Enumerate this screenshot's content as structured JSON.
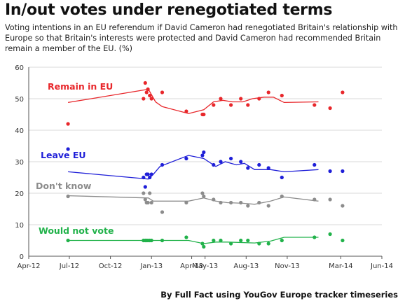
{
  "header": {
    "title": "In/out votes under renegotiated terms",
    "subtitle": "Voting intentions in an EU referendum if David Cameron had renegotiated Britain's relationship with Europe so that Britain's interests were protected and David Cameron had recommended Britain remain a member of the EU. (%)"
  },
  "footer": {
    "credit": "By Full Fact using YouGov Europe tracker timeseries"
  },
  "colors": {
    "remain": "#e8272b",
    "leave": "#1f1fd8",
    "dont_know": "#8c8c8c",
    "would_not_vote": "#21b24a",
    "grid": "#d9d9d9",
    "axis": "#555555"
  },
  "chart_data": {
    "type": "scatter",
    "title": "In/out votes under renegotiated terms",
    "xlabel": "",
    "ylabel": "",
    "xlim": [
      "2012-04-01",
      "2014-06-01"
    ],
    "ylim": [
      0,
      60
    ],
    "yticks": [
      0,
      10,
      20,
      30,
      40,
      50,
      60
    ],
    "xticks": [
      {
        "date": "2012-04-01",
        "label": "Apr-12"
      },
      {
        "date": "2012-07-01",
        "label": "Jul-12"
      },
      {
        "date": "2012-10-01",
        "label": "Oct-12"
      },
      {
        "date": "2013-01-01",
        "label": "Jan-13"
      },
      {
        "date": "2013-04-01",
        "label": "Apr-13"
      },
      {
        "date": "2013-05-01",
        "label": "May-13"
      },
      {
        "date": "2013-08-01",
        "label": "Aug-13"
      },
      {
        "date": "2013-11-01",
        "label": "Nov-13"
      },
      {
        "date": "2014-03-01",
        "label": "Mar-14"
      },
      {
        "date": "2014-06-01",
        "label": "Jun-14"
      }
    ],
    "grid": "horizontal",
    "series": [
      {
        "name": "Remain in EU",
        "color": "#e8272b",
        "points": [
          [
            "2012-06-28",
            42
          ],
          [
            "2012-12-14",
            50
          ],
          [
            "2012-12-18",
            55
          ],
          [
            "2012-12-21",
            52
          ],
          [
            "2012-12-24",
            53
          ],
          [
            "2012-12-28",
            51
          ],
          [
            "2013-01-01",
            50
          ],
          [
            "2013-01-25",
            52
          ],
          [
            "2013-03-20",
            46
          ],
          [
            "2013-04-25",
            45
          ],
          [
            "2013-04-28",
            45
          ],
          [
            "2013-05-20",
            48
          ],
          [
            "2013-06-05",
            50
          ],
          [
            "2013-06-28",
            48
          ],
          [
            "2013-07-20",
            50
          ],
          [
            "2013-08-05",
            48
          ],
          [
            "2013-08-30",
            50
          ],
          [
            "2013-09-20",
            52
          ],
          [
            "2013-10-20",
            51
          ],
          [
            "2014-01-01",
            48
          ],
          [
            "2014-02-05",
            47
          ],
          [
            "2014-03-05",
            52
          ]
        ],
        "trend": [
          [
            "2012-06-28",
            48.8
          ],
          [
            "2012-12-25",
            53
          ],
          [
            "2013-01-10",
            49
          ],
          [
            "2013-01-25",
            47.5
          ],
          [
            "2013-03-25",
            45.3
          ],
          [
            "2013-04-28",
            46.5
          ],
          [
            "2013-05-20",
            49
          ],
          [
            "2013-06-10",
            49.5
          ],
          [
            "2013-07-01",
            49
          ],
          [
            "2013-07-25",
            49
          ],
          [
            "2013-08-15",
            50
          ],
          [
            "2013-09-10",
            50.5
          ],
          [
            "2013-10-01",
            50.5
          ],
          [
            "2013-10-25",
            48.8
          ],
          [
            "2014-01-10",
            49
          ]
        ]
      },
      {
        "name": "Leave EU",
        "color": "#1f1fd8",
        "points": [
          [
            "2012-06-28",
            34
          ],
          [
            "2012-12-14",
            25
          ],
          [
            "2012-12-18",
            22
          ],
          [
            "2012-12-21",
            26
          ],
          [
            "2012-12-24",
            26
          ],
          [
            "2012-12-28",
            25
          ],
          [
            "2013-01-01",
            26
          ],
          [
            "2013-01-25",
            29
          ],
          [
            "2013-03-20",
            31
          ],
          [
            "2013-04-25",
            32
          ],
          [
            "2013-04-28",
            33
          ],
          [
            "2013-05-20",
            29
          ],
          [
            "2013-06-05",
            30
          ],
          [
            "2013-06-28",
            31
          ],
          [
            "2013-07-20",
            30
          ],
          [
            "2013-08-05",
            28
          ],
          [
            "2013-08-30",
            29
          ],
          [
            "2013-09-20",
            28
          ],
          [
            "2013-10-20",
            25
          ],
          [
            "2014-01-01",
            29
          ],
          [
            "2014-02-05",
            27
          ],
          [
            "2014-03-05",
            27
          ]
        ],
        "trend": [
          [
            "2012-06-28",
            26.8
          ],
          [
            "2012-12-25",
            24.5
          ],
          [
            "2013-01-05",
            26
          ],
          [
            "2013-01-20",
            28.5
          ],
          [
            "2013-03-25",
            32
          ],
          [
            "2013-04-28",
            31
          ],
          [
            "2013-05-25",
            28.5
          ],
          [
            "2013-06-15",
            30
          ],
          [
            "2013-07-10",
            29
          ],
          [
            "2013-07-28",
            29.5
          ],
          [
            "2013-08-20",
            27.5
          ],
          [
            "2013-09-25",
            27.5
          ],
          [
            "2013-10-25",
            26.8
          ],
          [
            "2014-01-10",
            27.5
          ]
        ]
      },
      {
        "name": "Don't know",
        "color": "#8c8c8c",
        "points": [
          [
            "2012-06-28",
            19
          ],
          [
            "2012-12-14",
            20
          ],
          [
            "2012-12-18",
            18
          ],
          [
            "2012-12-21",
            17
          ],
          [
            "2012-12-24",
            17
          ],
          [
            "2012-12-28",
            20
          ],
          [
            "2013-01-01",
            17
          ],
          [
            "2013-01-25",
            14
          ],
          [
            "2013-03-20",
            17
          ],
          [
            "2013-04-25",
            20
          ],
          [
            "2013-04-28",
            19
          ],
          [
            "2013-05-20",
            18
          ],
          [
            "2013-06-05",
            17
          ],
          [
            "2013-06-28",
            17
          ],
          [
            "2013-07-20",
            17
          ],
          [
            "2013-08-05",
            16
          ],
          [
            "2013-08-30",
            17
          ],
          [
            "2013-09-20",
            16
          ],
          [
            "2013-10-20",
            19
          ],
          [
            "2014-01-01",
            18
          ],
          [
            "2014-02-05",
            18
          ],
          [
            "2014-03-05",
            16
          ]
        ],
        "trend": [
          [
            "2012-06-28",
            19.2
          ],
          [
            "2012-12-25",
            18.5
          ],
          [
            "2013-01-05",
            17.5
          ],
          [
            "2013-03-25",
            17.5
          ],
          [
            "2013-04-28",
            18.5
          ],
          [
            "2013-05-25",
            17.5
          ],
          [
            "2013-06-20",
            17
          ],
          [
            "2013-07-25",
            16.8
          ],
          [
            "2013-08-20",
            16.5
          ],
          [
            "2013-09-25",
            17.5
          ],
          [
            "2013-10-25",
            18.8
          ],
          [
            "2014-01-10",
            17.5
          ]
        ]
      },
      {
        "name": "Would not vote",
        "color": "#21b24a",
        "points": [
          [
            "2012-06-28",
            5
          ],
          [
            "2012-12-14",
            5
          ],
          [
            "2012-12-18",
            5
          ],
          [
            "2012-12-21",
            5
          ],
          [
            "2012-12-24",
            5
          ],
          [
            "2012-12-28",
            5
          ],
          [
            "2013-01-01",
            5
          ],
          [
            "2013-01-25",
            5
          ],
          [
            "2013-03-20",
            6
          ],
          [
            "2013-04-25",
            4
          ],
          [
            "2013-04-28",
            3
          ],
          [
            "2013-05-20",
            5
          ],
          [
            "2013-06-05",
            5
          ],
          [
            "2013-06-28",
            4
          ],
          [
            "2013-07-20",
            5
          ],
          [
            "2013-08-05",
            5
          ],
          [
            "2013-08-30",
            4
          ],
          [
            "2013-09-20",
            4
          ],
          [
            "2013-10-20",
            5
          ],
          [
            "2014-01-01",
            6
          ],
          [
            "2014-02-05",
            7
          ],
          [
            "2014-03-05",
            5
          ]
        ],
        "trend": [
          [
            "2012-06-28",
            5
          ],
          [
            "2012-12-25",
            5
          ],
          [
            "2013-03-25",
            5
          ],
          [
            "2013-04-28",
            4
          ],
          [
            "2013-05-25",
            4.5
          ],
          [
            "2013-06-20",
            4.5
          ],
          [
            "2013-08-20",
            4.2
          ],
          [
            "2013-09-25",
            4.8
          ],
          [
            "2013-10-25",
            6
          ],
          [
            "2014-01-10",
            6
          ]
        ]
      }
    ],
    "annotations": [
      {
        "series": "Remain in EU",
        "text": "Remain in EU"
      },
      {
        "series": "Leave EU",
        "text": "Leave EU"
      },
      {
        "series": "Don't know",
        "text": "Don't know"
      },
      {
        "series": "Would not vote",
        "text": "Would not vote"
      }
    ]
  }
}
